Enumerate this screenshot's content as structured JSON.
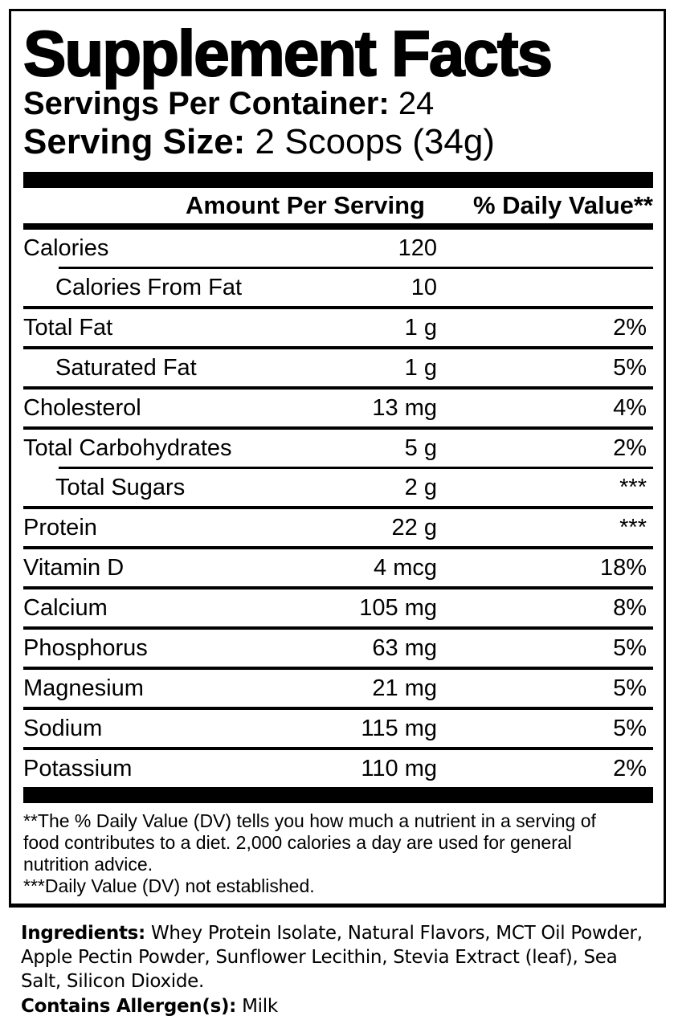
{
  "title": "Supplement Facts",
  "servings_per_container": {
    "label": "Servings Per Container:",
    "value": "24"
  },
  "serving_size": {
    "label": "Serving Size:",
    "value": "2 Scoops (34g)"
  },
  "table": {
    "headers": {
      "amount": "Amount Per Serving",
      "dv": "% Daily Value**"
    },
    "rows": [
      {
        "name": "Calories",
        "amount": "120",
        "dv": "",
        "indent": false,
        "sep_after": "indented"
      },
      {
        "name": "Calories From Fat",
        "amount": "10",
        "dv": "",
        "indent": true,
        "sep_after": "full"
      },
      {
        "name": "Total Fat",
        "amount": "1 g",
        "dv": "2%",
        "indent": false,
        "sep_after": "full"
      },
      {
        "name": "Saturated Fat",
        "amount": "1 g",
        "dv": "5%",
        "indent": true,
        "sep_after": "full"
      },
      {
        "name": "Cholesterol",
        "amount": "13 mg",
        "dv": "4%",
        "indent": false,
        "sep_after": "full"
      },
      {
        "name": "Total Carbohydrates",
        "amount": "5 g",
        "dv": "2%",
        "indent": false,
        "sep_after": "indented"
      },
      {
        "name": "Total Sugars",
        "amount": "2 g",
        "dv": "***",
        "indent": true,
        "sep_after": "full"
      },
      {
        "name": "Protein",
        "amount": "22 g",
        "dv": "***",
        "indent": false,
        "sep_after": "full"
      },
      {
        "name": "Vitamin D",
        "amount": "4 mcg",
        "dv": "18%",
        "indent": false,
        "sep_after": "full"
      },
      {
        "name": "Calcium",
        "amount": "105 mg",
        "dv": "8%",
        "indent": false,
        "sep_after": "full"
      },
      {
        "name": "Phosphorus",
        "amount": "63 mg",
        "dv": "5%",
        "indent": false,
        "sep_after": "full"
      },
      {
        "name": "Magnesium",
        "amount": "21 mg",
        "dv": "5%",
        "indent": false,
        "sep_after": "full"
      },
      {
        "name": "Sodium",
        "amount": "115 mg",
        "dv": "5%",
        "indent": false,
        "sep_after": "full"
      },
      {
        "name": "Potassium",
        "amount": "110 mg",
        "dv": "2%",
        "indent": false,
        "sep_after": "none"
      }
    ]
  },
  "footnotes": {
    "dv_lines": [
      "**The % Daily Value (DV) tells you how much a nutrient in a serving of",
      "food contributes to a diet. 2,000 calories a day are used for general",
      "nutrition advice."
    ],
    "not_established": "***Daily Value (DV) not established."
  },
  "ingredients": {
    "label": "Ingredients:",
    "text": "Whey Protein Isolate, Natural Flavors, MCT Oil Powder, Apple Pectin Powder, Sunflower Lecithin, Stevia Extract (leaf), Sea Salt, Silicon Dioxide.",
    "allergen_label": "Contains Allergen(s):",
    "allergen_value": "Milk"
  },
  "colors": {
    "ink": "#000000",
    "background": "#ffffff"
  }
}
